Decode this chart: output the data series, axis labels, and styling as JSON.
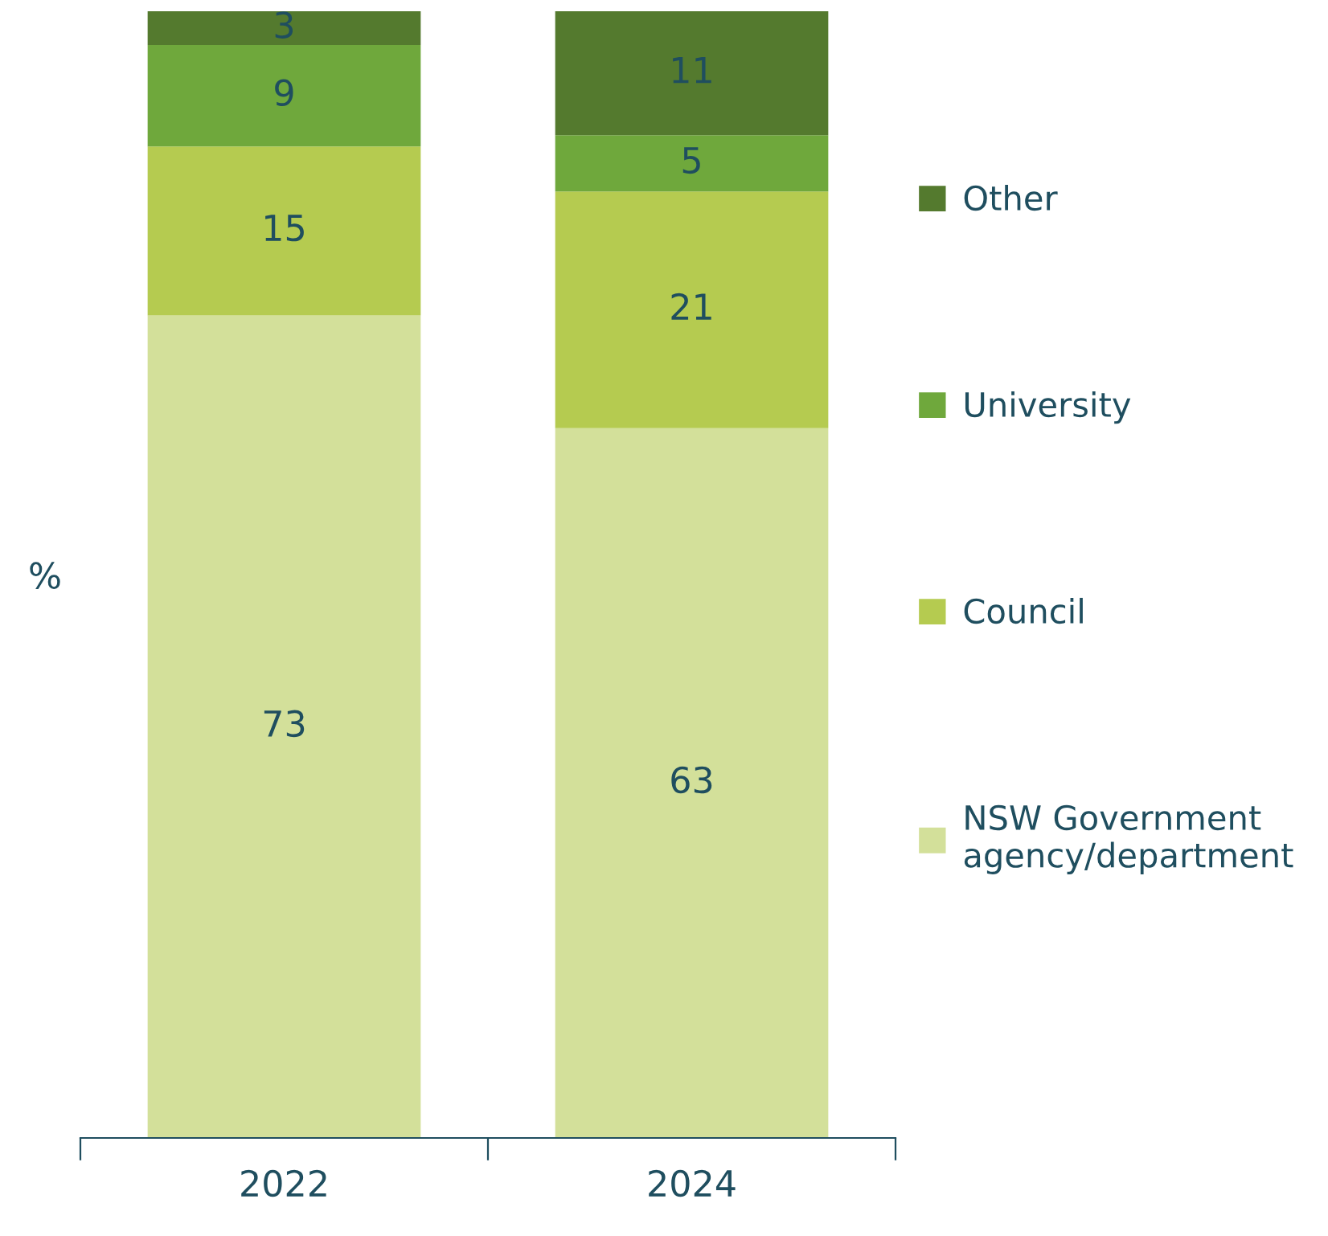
{
  "chart_data": {
    "type": "bar",
    "stacked": true,
    "ylabel": "%",
    "categories": [
      "2022",
      "2024"
    ],
    "series": [
      {
        "name": "NSW Government\nagency/department",
        "color": "#d3e09a",
        "values": [
          73,
          63
        ]
      },
      {
        "name": "Council",
        "color": "#b5cb50",
        "values": [
          15,
          21
        ]
      },
      {
        "name": "University",
        "color": "#6fa83c",
        "values": [
          9,
          5
        ]
      },
      {
        "name": "Other",
        "color": "#547a2e",
        "values": [
          3,
          11
        ]
      }
    ],
    "data_labels": true,
    "legend": "right",
    "grid": false,
    "tick_labels": "x"
  }
}
